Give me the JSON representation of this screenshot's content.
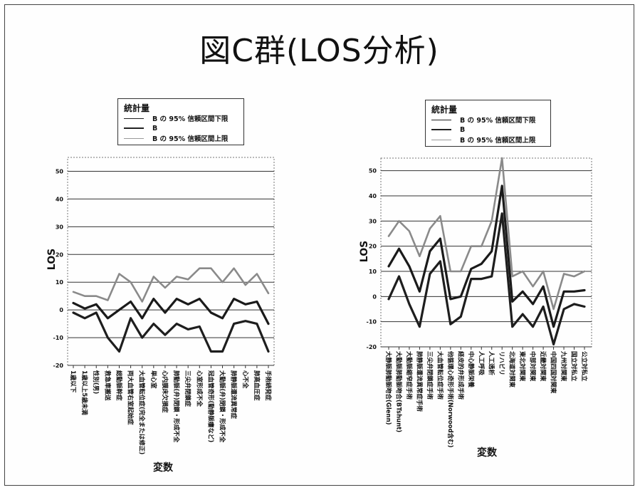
{
  "slide": {
    "title": "図C群(LOS分析)"
  },
  "legend_title": "統計量",
  "chart_data": [
    {
      "type": "line",
      "title": "",
      "xlabel": "変数",
      "ylabel": "LOS",
      "ylim": [
        -20,
        55
      ],
      "yticks": [
        -20,
        -10,
        0,
        10,
        20,
        30,
        40,
        50
      ],
      "grid": true,
      "legend": "top",
      "categories": [
        "1歳以下",
        "1歳以上5歳未満",
        "性別(男)",
        "救急車搬送",
        "総動脈幹症",
        "両大血管右室起始症",
        "大血管転位症(完全または修正)",
        "単心室",
        "心内膜床欠損症",
        "肺動脈(弁)閉鎖・形成不全",
        "三尖弁閉鎖症",
        "心室形成不全",
        "冠血管奇形(動静脈瘻など)",
        "大動脈(弁)閉鎖・形成不全",
        "肺静脈還流異常症",
        "心不全",
        "肺高血圧症",
        "手術続発症"
      ],
      "series": [
        {
          "name": "B の 95% 信頼区間下限",
          "values": [
            -1,
            -3,
            -1,
            -10,
            -15,
            -3,
            -10,
            -5,
            -9,
            -5,
            -7,
            -6,
            -15,
            -15,
            -5,
            -4,
            -5,
            -15
          ]
        },
        {
          "name": "B",
          "values": [
            2.5,
            0.5,
            2,
            -3,
            0,
            3,
            -3,
            4,
            -1,
            4,
            2,
            4,
            -1,
            -3,
            4,
            2,
            3,
            -5
          ]
        },
        {
          "name": "B の 95% 信頼区間上限",
          "values": [
            6.5,
            5,
            5,
            3.5,
            13,
            10,
            3,
            12,
            8,
            12,
            11,
            15,
            15,
            10,
            15,
            9,
            13,
            6
          ]
        }
      ]
    },
    {
      "type": "line",
      "title": "",
      "xlabel": "変数",
      "ylabel": "LOS",
      "ylim": [
        -20,
        55
      ],
      "yticks": [
        -20,
        -10,
        0,
        10,
        20,
        30,
        40,
        50
      ],
      "grid": true,
      "legend": "top",
      "categories": [
        "大静脈肺動脈吻合(Glenn)",
        "大動脈肺動脈吻合(BTshunt)",
        "大動脈縮窄症手術",
        "肺静脈還流異常症手術",
        "三尖弁閉鎖症手術",
        "大血管転位症手術",
        "他循環心奇形手術(Norwood含む)",
        "経皮的弁形成手術",
        "中心静脈栄養",
        "人工呼吸",
        "人工透析",
        "リハビリ",
        "北海道対関東",
        "東北対関東",
        "中部対関東",
        "近畿対関東",
        "中国四国対関東",
        "九州対関東",
        "国立対私立",
        "公立対私立"
      ],
      "series": [
        {
          "name": "B の 95% 信頼区間下限",
          "values": [
            -1,
            8,
            -3,
            -12,
            9,
            14,
            -11,
            -8,
            7,
            7,
            8,
            33,
            -12,
            -7,
            -12,
            -4,
            -19,
            -5,
            -3,
            -4
          ]
        },
        {
          "name": "B",
          "values": [
            12,
            19,
            12,
            2,
            18,
            23,
            -1,
            0,
            11,
            13,
            18,
            44,
            -2,
            2,
            -3,
            4,
            -12,
            2,
            2,
            2.5
          ]
        },
        {
          "name": "B の 95% 信頼区間上限",
          "values": [
            24,
            30,
            26,
            16,
            27,
            32,
            10,
            10,
            20,
            20,
            30,
            55,
            8,
            10,
            4,
            10,
            -5,
            9,
            8,
            10
          ]
        }
      ]
    }
  ]
}
